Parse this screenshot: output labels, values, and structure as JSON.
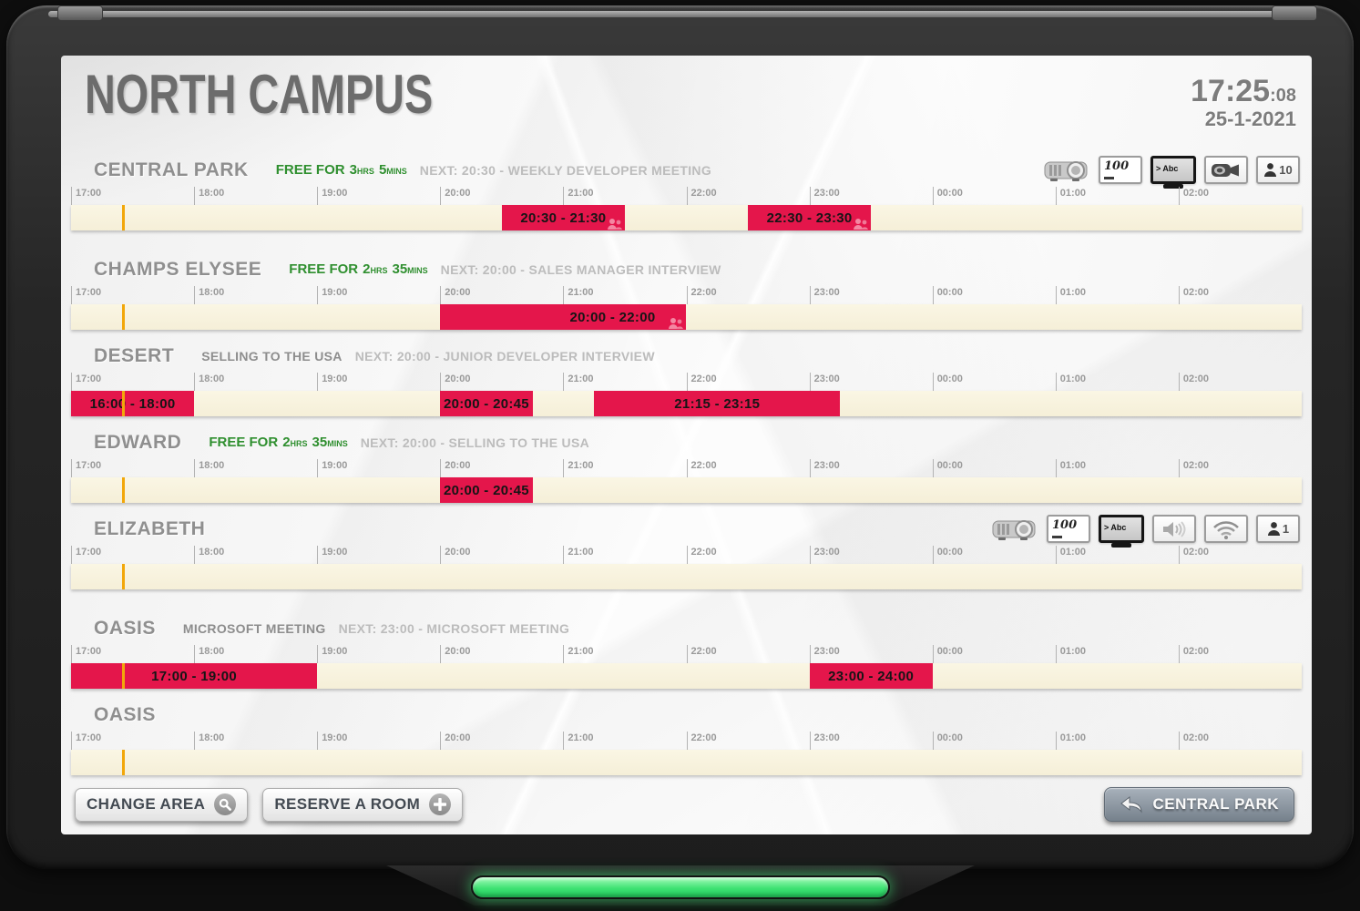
{
  "header": {
    "title": "NORTH CAMPUS",
    "clock_time": "17:25",
    "clock_seconds": ":08",
    "date": "25-1-2021"
  },
  "timeline": {
    "ticks": [
      "17:00",
      "18:00",
      "19:00",
      "20:00",
      "21:00",
      "22:00",
      "23:00",
      "00:00",
      "01:00",
      "02:00"
    ],
    "tick_step_pct": 10,
    "current_time_pct": 4.17
  },
  "colors": {
    "booking_red": "#e4164b",
    "bar_cream": "#faf6e4",
    "now_orange": "#f2a70a",
    "free_green": "#2f8f2f",
    "led_green": "#3ee273"
  },
  "rooms": [
    {
      "name": "CENTRAL PARK",
      "free": {
        "prefix": "FREE FOR",
        "hours": "3",
        "hours_unit": "HRS",
        "minutes": "5",
        "minutes_unit": "MINS"
      },
      "next": "NEXT: 20:30 - WEEKLY DEVELOPER MEETING",
      "amenities": [
        {
          "type": "projector"
        },
        {
          "type": "whiteboard",
          "value": "100"
        },
        {
          "type": "screen",
          "value": "> Abc"
        },
        {
          "type": "camera"
        },
        {
          "type": "capacity",
          "value": "10"
        }
      ],
      "bookings": [
        {
          "label": "20:30 - 21:30",
          "start_pct": 35,
          "end_pct": 45,
          "attendees_icon": true
        },
        {
          "label": "22:30 - 23:30",
          "start_pct": 55,
          "end_pct": 65,
          "attendees_icon": true
        }
      ]
    },
    {
      "name": "CHAMPS ELYSEE",
      "free": {
        "prefix": "FREE FOR",
        "hours": "2",
        "hours_unit": "HRS",
        "minutes": "35",
        "minutes_unit": "MINS"
      },
      "next": "NEXT: 20:00 - SALES MANAGER INTERVIEW",
      "bookings": [
        {
          "label": "20:00 - 22:00",
          "start_pct": 30,
          "end_pct": 50,
          "attendees_icon": true,
          "align": "right"
        }
      ]
    },
    {
      "name": "DESERT",
      "current_meeting": "SELLING TO THE USA",
      "next": "NEXT: 20:00 - JUNIOR DEVELOPER INTERVIEW",
      "bookings": [
        {
          "label": "16:00 - 18:00",
          "start_pct": 0,
          "end_pct": 10
        },
        {
          "label": "20:00 - 20:45",
          "start_pct": 30,
          "end_pct": 37.5
        },
        {
          "label": "21:15 - 23:15",
          "start_pct": 42.5,
          "end_pct": 62.5
        }
      ]
    },
    {
      "name": "EDWARD",
      "free": {
        "prefix": "FREE FOR",
        "hours": "2",
        "hours_unit": "HRS",
        "minutes": "35",
        "minutes_unit": "MINS"
      },
      "next": "NEXT: 20:00 - SELLING TO THE USA",
      "bookings": [
        {
          "label": "20:00 - 20:45",
          "start_pct": 30,
          "end_pct": 37.5
        }
      ]
    },
    {
      "name": "ELIZABETH",
      "amenities": [
        {
          "type": "projector"
        },
        {
          "type": "whiteboard",
          "value": "100"
        },
        {
          "type": "screen",
          "value": "> Abc"
        },
        {
          "type": "speaker"
        },
        {
          "type": "wifi"
        },
        {
          "type": "capacity",
          "value": "1"
        }
      ],
      "bookings": []
    },
    {
      "name": "OASIS",
      "current_meeting": "MICROSOFT MEETING",
      "next": "NEXT: 23:00 - MICROSOFT MEETING",
      "bookings": [
        {
          "label": "17:00 - 19:00",
          "start_pct": 0,
          "end_pct": 20
        },
        {
          "label": "23:00 - 24:00",
          "start_pct": 60,
          "end_pct": 70
        }
      ]
    },
    {
      "name": "OASIS",
      "bookings": []
    }
  ],
  "footer": {
    "change_area_label": "CHANGE AREA",
    "reserve_room_label": "RESERVE A ROOM",
    "back_button_label": "CENTRAL PARK"
  }
}
